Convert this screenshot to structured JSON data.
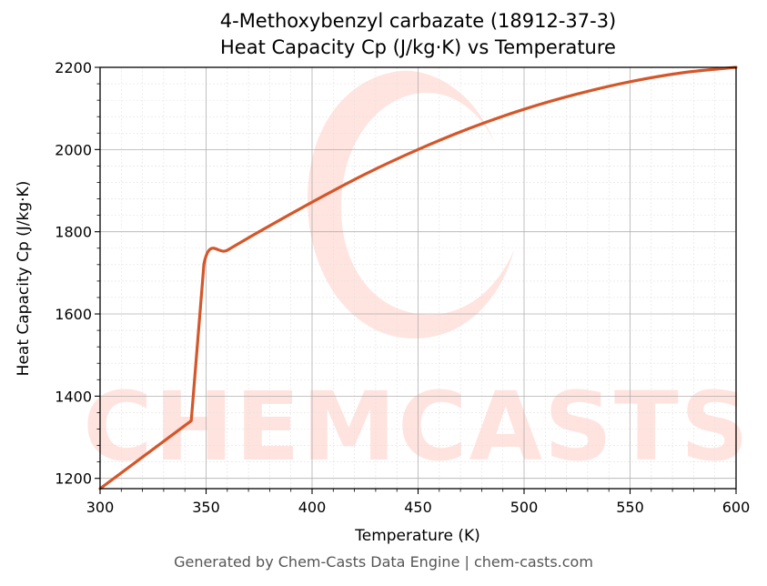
{
  "chart_data": {
    "type": "line",
    "title": "4-Methoxybenzyl carbazate (18912-37-3)",
    "subtitle": "Heat Capacity Cp (J/kg·K) vs Temperature",
    "xlabel": "Temperature (K)",
    "ylabel": "Heat Capacity Cp (J/kg·K)",
    "xlim": [
      300,
      600
    ],
    "ylim": [
      1175,
      2200
    ],
    "xticks": [
      300,
      350,
      400,
      450,
      500,
      550,
      600
    ],
    "yticks": [
      1200,
      1400,
      1600,
      1800,
      2000,
      2200
    ],
    "grid": true,
    "series": [
      {
        "color": "#d4572a",
        "x": [
          300,
          343,
          349,
          360,
          375,
          400,
          425,
          450,
          475,
          500,
          525,
          550,
          575,
          600
        ],
        "y": [
          1175,
          1340,
          1722,
          1755,
          1800,
          1872,
          1940,
          2000,
          2053,
          2098,
          2135,
          2165,
          2187,
          2200
        ]
      }
    ]
  },
  "watermark": "CHEMCASTS",
  "footer": "Generated by Chem-Casts Data Engine | chem-casts.com"
}
